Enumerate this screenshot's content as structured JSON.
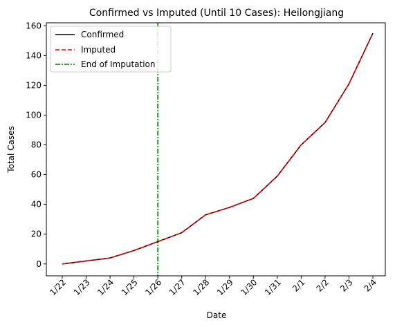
{
  "chart_data": {
    "type": "line",
    "title": "Confirmed vs Imputed (Until 10 Cases): Heilongjiang",
    "xlabel": "Date",
    "ylabel": "Total Cases",
    "categories": [
      "1/22",
      "1/23",
      "1/24",
      "1/25",
      "1/26",
      "1/27",
      "1/28",
      "1/29",
      "1/30",
      "1/31",
      "2/1",
      "2/2",
      "2/3",
      "2/4"
    ],
    "ylim": [
      -8,
      162
    ],
    "yticks": [
      0,
      20,
      40,
      60,
      80,
      100,
      120,
      140,
      160
    ],
    "grid": false,
    "legend_position": "top-left",
    "series": [
      {
        "name": "Confirmed",
        "style": "solid",
        "color": "#000000",
        "values": [
          0,
          2,
          4,
          9,
          15,
          21,
          33,
          38,
          44,
          59,
          80,
          95,
          121,
          155
        ]
      },
      {
        "name": "Imputed",
        "style": "dashed",
        "color": "#ff0000",
        "values": [
          0,
          2,
          4,
          9,
          15,
          21,
          33,
          38,
          44,
          59,
          80,
          95,
          121,
          155
        ]
      }
    ],
    "vline": {
      "name": "End of Imputation",
      "style": "dashdot",
      "color": "#008000",
      "x": "1/26"
    }
  }
}
